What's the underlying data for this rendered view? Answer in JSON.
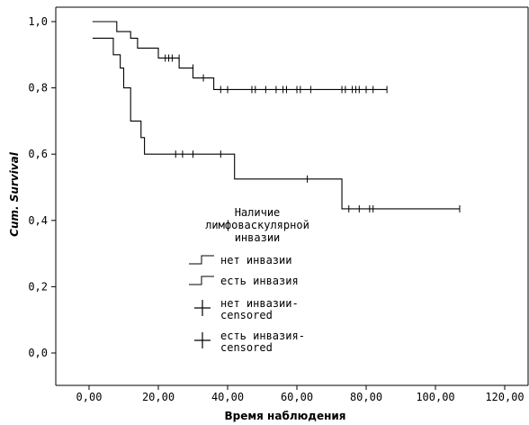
{
  "chart_data": {
    "type": "line",
    "subtype": "kaplan-meier-step",
    "xlabel": "Время наблюдения",
    "ylabel": "Cum. Survival",
    "xlim": [
      0,
      120
    ],
    "ylim": [
      0,
      1.0
    ],
    "x_ticks": [
      {
        "value": 0,
        "label": "0,00"
      },
      {
        "value": 20,
        "label": "20,00"
      },
      {
        "value": 40,
        "label": "40,00"
      },
      {
        "value": 60,
        "label": "60,00"
      },
      {
        "value": 80,
        "label": "80,00"
      },
      {
        "value": 100,
        "label": "100,00"
      },
      {
        "value": 120,
        "label": "120,00"
      }
    ],
    "y_ticks": [
      {
        "value": 0.0,
        "label": "0,0"
      },
      {
        "value": 0.2,
        "label": "0,2"
      },
      {
        "value": 0.4,
        "label": "0,4"
      },
      {
        "value": 0.6,
        "label": "0,6"
      },
      {
        "value": 0.8,
        "label": "0,8"
      },
      {
        "value": 1.0,
        "label": "1,0"
      }
    ],
    "grid": false,
    "legend": {
      "title_lines": [
        "Наличие",
        "лимфоваскулярной",
        "инвазии"
      ],
      "placement": "center",
      "entries": [
        {
          "kind": "step",
          "label_lines": [
            "нет инвазии"
          ]
        },
        {
          "kind": "step",
          "label_lines": [
            "есть инвазия"
          ]
        },
        {
          "kind": "censor",
          "label_lines": [
            "нет инвазии-",
            "censored"
          ]
        },
        {
          "kind": "censor",
          "label_lines": [
            "есть инвазия-",
            "censored"
          ]
        }
      ]
    },
    "series": [
      {
        "name": "нет инвазии",
        "steps": [
          {
            "x": 1,
            "y": 1.0
          },
          {
            "x": 8,
            "y": 0.97
          },
          {
            "x": 12,
            "y": 0.95
          },
          {
            "x": 14,
            "y": 0.92
          },
          {
            "x": 20,
            "y": 0.89
          },
          {
            "x": 24,
            "y": 0.89
          },
          {
            "x": 26,
            "y": 0.86
          },
          {
            "x": 30,
            "y": 0.83
          },
          {
            "x": 36,
            "y": 0.795
          },
          {
            "x": 86,
            "y": 0.795
          }
        ],
        "censored": [
          {
            "x": 22,
            "y": 0.89
          },
          {
            "x": 23,
            "y": 0.89
          },
          {
            "x": 24,
            "y": 0.89
          },
          {
            "x": 26,
            "y": 0.89
          },
          {
            "x": 30,
            "y": 0.86
          },
          {
            "x": 33,
            "y": 0.83
          },
          {
            "x": 38,
            "y": 0.795
          },
          {
            "x": 40,
            "y": 0.795
          },
          {
            "x": 47,
            "y": 0.795
          },
          {
            "x": 48,
            "y": 0.795
          },
          {
            "x": 51,
            "y": 0.795
          },
          {
            "x": 54,
            "y": 0.795
          },
          {
            "x": 56,
            "y": 0.795
          },
          {
            "x": 57,
            "y": 0.795
          },
          {
            "x": 60,
            "y": 0.795
          },
          {
            "x": 61,
            "y": 0.795
          },
          {
            "x": 64,
            "y": 0.795
          },
          {
            "x": 73,
            "y": 0.795
          },
          {
            "x": 74,
            "y": 0.795
          },
          {
            "x": 76,
            "y": 0.795
          },
          {
            "x": 77,
            "y": 0.795
          },
          {
            "x": 78,
            "y": 0.795
          },
          {
            "x": 80,
            "y": 0.795
          },
          {
            "x": 82,
            "y": 0.795
          },
          {
            "x": 86,
            "y": 0.795
          }
        ]
      },
      {
        "name": "есть инвазия",
        "steps": [
          {
            "x": 1,
            "y": 0.95
          },
          {
            "x": 7,
            "y": 0.9
          },
          {
            "x": 9,
            "y": 0.86
          },
          {
            "x": 10,
            "y": 0.8
          },
          {
            "x": 12,
            "y": 0.7
          },
          {
            "x": 15,
            "y": 0.65
          },
          {
            "x": 16,
            "y": 0.6
          },
          {
            "x": 42,
            "y": 0.525
          },
          {
            "x": 73,
            "y": 0.435
          },
          {
            "x": 107,
            "y": 0.435
          }
        ],
        "censored": [
          {
            "x": 25,
            "y": 0.6
          },
          {
            "x": 27,
            "y": 0.6
          },
          {
            "x": 30,
            "y": 0.6
          },
          {
            "x": 38,
            "y": 0.6
          },
          {
            "x": 63,
            "y": 0.525
          },
          {
            "x": 75,
            "y": 0.435
          },
          {
            "x": 78,
            "y": 0.435
          },
          {
            "x": 81,
            "y": 0.435
          },
          {
            "x": 82,
            "y": 0.435
          },
          {
            "x": 107,
            "y": 0.435
          }
        ]
      }
    ]
  }
}
